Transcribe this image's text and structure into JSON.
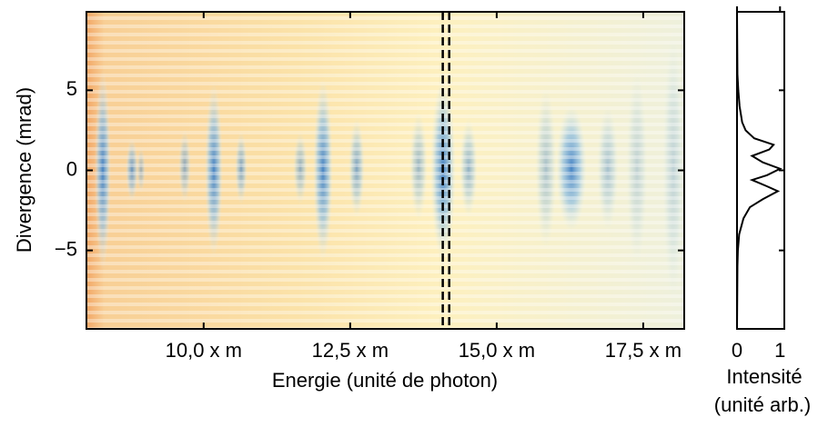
{
  "chart_data": [
    {
      "type": "image",
      "xlabel": "Energie (unité de photon)",
      "ylabel": "Divergence (mrad)",
      "xlim": [
        8,
        18.2
      ],
      "xticks": [
        {
          "value": 10,
          "label": "10,0 x m"
        },
        {
          "value": 12.5,
          "label": "12,5 x m"
        },
        {
          "value": 15,
          "label": "15,0 x m"
        },
        {
          "value": 17.5,
          "label": "17,5 x m"
        }
      ],
      "ylim": [
        -9.9,
        9.9
      ],
      "yticks": [
        5,
        0,
        {
          "value": -5,
          "label": "−5"
        }
      ],
      "markers": [
        14.08,
        14.19
      ]
    },
    {
      "type": "line",
      "xlabel": "Intensité",
      "xunit": "(unité arb.)",
      "xlim": [
        0,
        1.1
      ],
      "xticks": [
        0,
        1
      ],
      "ylim": [
        -9.9,
        9.9
      ],
      "yticks": [
        5,
        0,
        -5
      ],
      "color": "#000000",
      "divergence": [
        9.9,
        6,
        5,
        4,
        3,
        2.5,
        2,
        1.6,
        1.3,
        0.9,
        0.5,
        0.1,
        -0.3,
        -0.6,
        -1,
        -1.3,
        -1.8,
        -2.3,
        -3,
        -3.5,
        -4,
        -5,
        -6,
        -9.9
      ],
      "values": [
        0,
        0.01,
        0.03,
        0.06,
        0.12,
        0.2,
        0.4,
        0.85,
        0.75,
        0.35,
        0.6,
        1.0,
        0.7,
        0.35,
        0.7,
        0.95,
        0.6,
        0.3,
        0.15,
        0.1,
        0.05,
        0.02,
        0.01,
        0
      ]
    }
  ]
}
